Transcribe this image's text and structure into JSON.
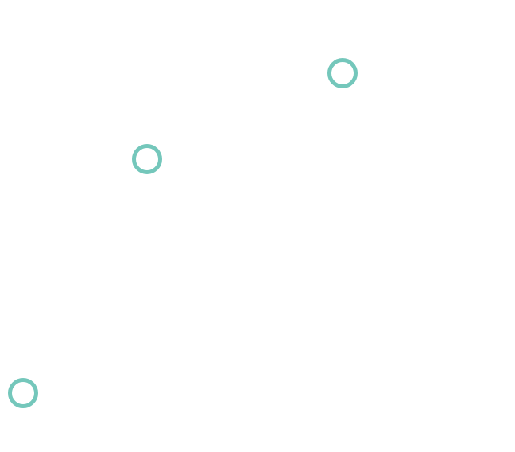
{
  "canvas": {
    "background": "#ffffff"
  },
  "markers": {
    "color": "#74c7bb",
    "shape": "ring",
    "items": [
      {
        "icon": "ring-icon"
      },
      {
        "icon": "ring-icon"
      },
      {
        "icon": "ring-icon"
      }
    ]
  }
}
